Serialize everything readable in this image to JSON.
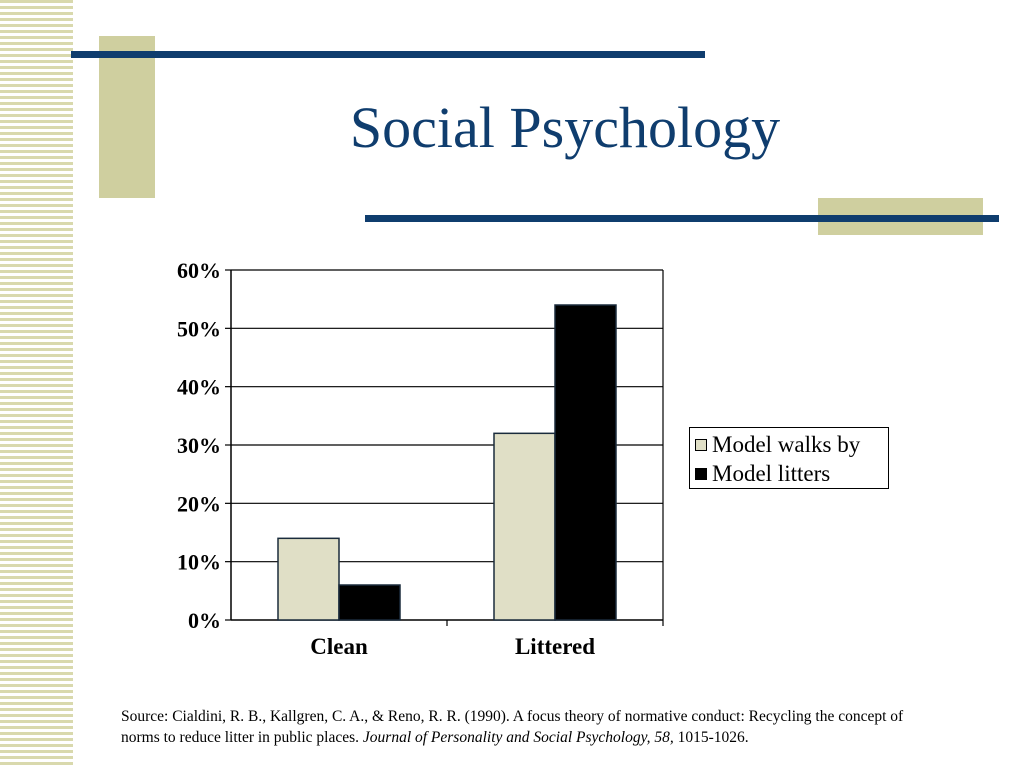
{
  "slide": {
    "title": "Social Psychology",
    "colors": {
      "accent_navy": "#0f3d6e",
      "accent_khaki": "#cfcf9f",
      "stripe": "#d9d9ad"
    }
  },
  "chart_data": {
    "type": "bar",
    "categories": [
      "Clean",
      "Littered"
    ],
    "series": [
      {
        "name": "Model walks by",
        "values": [
          14,
          32
        ],
        "color": "#e0dfc6"
      },
      {
        "name": "Model litters",
        "values": [
          6,
          54
        ],
        "color": "#000000"
      }
    ],
    "y_ticks": [
      "0%",
      "10%",
      "20%",
      "30%",
      "40%",
      "50%",
      "60%"
    ],
    "ylim": [
      0,
      60
    ],
    "y_unit": "%",
    "grid": true,
    "legend_position": "right"
  },
  "source": {
    "prefix": "Source: Cialdini, R. B., Kallgren, C. A., & Reno, R. R. (1990). A focus theory of normative conduct: Recycling the concept of norms to reduce litter in public places. ",
    "journal": "Journal of Personality and Social Psychology, 58,",
    "pages": " 1015-1026."
  }
}
